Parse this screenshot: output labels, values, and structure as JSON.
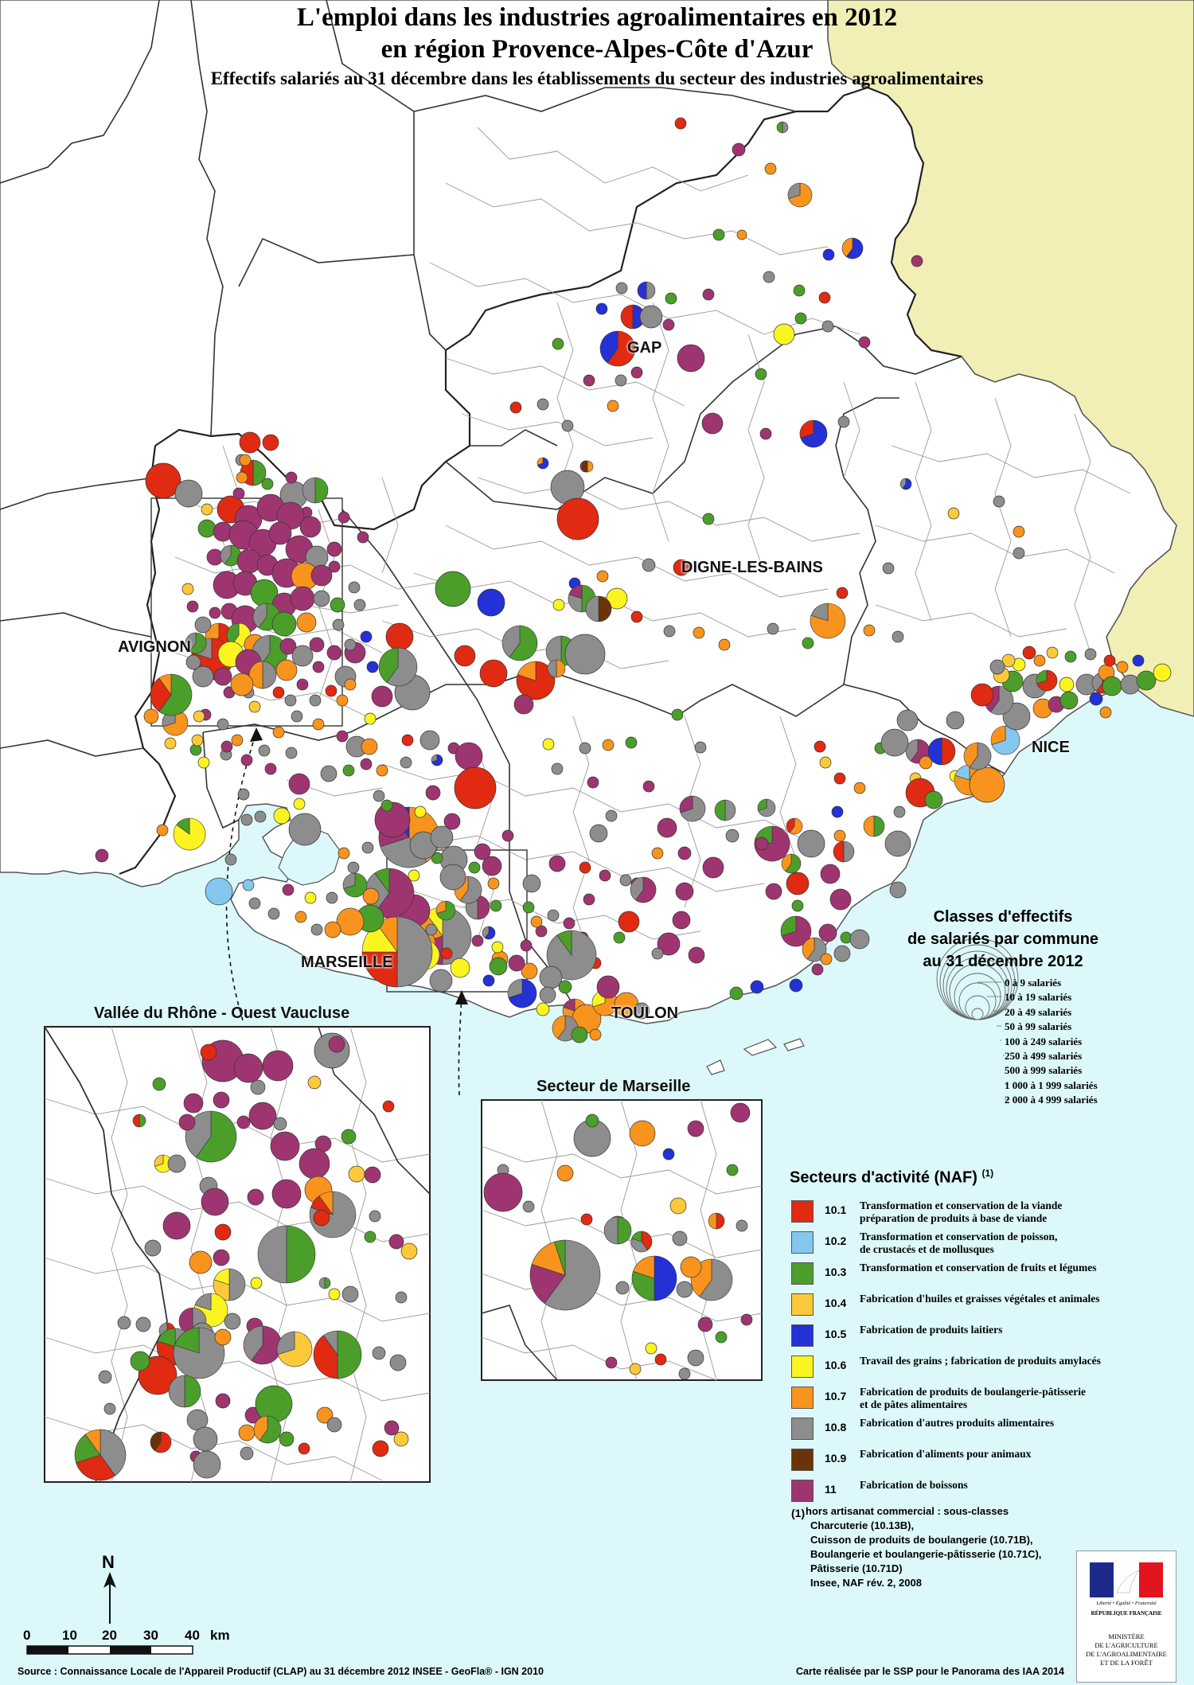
{
  "title": {
    "line1": "L'emploi dans les industries agroalimentaires en 2012",
    "line2": "en région Provence-Alpes-Côte d'Azur",
    "subtitle": "Effectifs salariés au 31 décembre  dans les établissements du secteur des industries agroalimentaires"
  },
  "cities": {
    "gap": "GAP",
    "digne": "DIGNE-LES-BAINS",
    "avignon": "AVIGNON",
    "nice": "NICE",
    "marseille": "MARSEILLE",
    "toulon": "TOULON"
  },
  "insets": {
    "rhone": "Vallée du Rhône - Ouest Vaucluse",
    "marseille": "Secteur de Marseille"
  },
  "size_legend": {
    "title_lines": [
      "Classes d'effectifs",
      "de salariés par commune",
      "au 31 décembre 2012"
    ],
    "classes": [
      "0 à 9 salariés",
      "10 à 19 salariés",
      "20 à 49 salariés",
      "50 à 99 salariés",
      "100 à 249 salariés",
      "250 à 499 salariés",
      "500 à 999 salariés",
      "1 000 à 1 999 salariés",
      "2 000 à 4 999 salariés"
    ]
  },
  "sector_legend": {
    "title": "Secteurs d'activité (NAF)",
    "title_note": "(1)",
    "items": [
      {
        "code": "10.1",
        "label": "Transformation et conservation de la viande\npréparation de produits à base de viande",
        "color": "#e02a12"
      },
      {
        "code": "10.2",
        "label": "Transformation et conservation de poisson,\nde crustacés et de mollusques",
        "color": "#84c7ee"
      },
      {
        "code": "10.3",
        "label": "Transformation et conservation de fruits et légumes",
        "color": "#4c9e2b"
      },
      {
        "code": "10.4",
        "label": "Fabrication d'huiles et graisses végétales et animales",
        "color": "#fcc93a"
      },
      {
        "code": "10.5",
        "label": "Fabrication de produits laitiers",
        "color": "#2431d6"
      },
      {
        "code": "10.6",
        "label": "Travail des grains ; fabrication de produits amylacés",
        "color": "#fbf420"
      },
      {
        "code": "10.7",
        "label": "Fabrication de produits de boulangerie-pâtisserie\net de pâtes alimentaires",
        "color": "#f8941d"
      },
      {
        "code": "10.8",
        "label": "Fabrication d'autres produits alimentaires",
        "color": "#8d8d8d"
      },
      {
        "code": "10.9",
        "label": "Fabrication d'aliments pour animaux",
        "color": "#6b3309"
      },
      {
        "code": "11",
        "label": "Fabrication de boissons",
        "color": "#9f3570"
      }
    ]
  },
  "footnote": {
    "marker": "(1)",
    "lines": [
      "hors artisanat commercial : sous-classes",
      "Charcuterie (10.13B),",
      "Cuisson de produits de boulangerie (10.71B),",
      "Boulangerie et boulangerie-pâtisserie (10.71C),",
      "Pâtisserie (10.71D)",
      "Insee, NAF rév. 2, 2008"
    ]
  },
  "scale": {
    "north": "N",
    "ticks": [
      "0",
      "10",
      "20",
      "30",
      "40"
    ],
    "unit": "km"
  },
  "logo": {
    "motto": "Liberté • Égalité • Fraternité",
    "republic": "RÉPUBLIQUE FRANÇAISE",
    "ministry": "MINISTÈRE\nDE L'AGRICULTURE\nDE L'AGROALIMENTAIRE\nET DE LA FORÊT"
  },
  "source": "Source : Connaissance Locale de l'Appareil Productif (CLAP) au 31 décembre 2012  INSEE - GeoFla® - IGN 2010",
  "credit": "Carte réalisée par le SSP pour le Panorama des IAA 2014",
  "colors": {
    "sea": "#dcf8fa",
    "italy": "#f1efb6",
    "land": "#ffffff",
    "border": "#555555"
  },
  "symbols": [
    {
      "map": "main",
      "size": 6,
      "parts": [
        [
          2,
          1
        ]
      ]
    },
    {
      "map": "main",
      "size": 6,
      "parts": [
        [
          7,
          1
        ]
      ]
    },
    {
      "map": "main",
      "size": 5,
      "parts": [
        [
          9,
          1
        ]
      ]
    },
    {
      "map": "main",
      "size": 5,
      "parts": [
        [
          0,
          1
        ]
      ]
    }
  ]
}
